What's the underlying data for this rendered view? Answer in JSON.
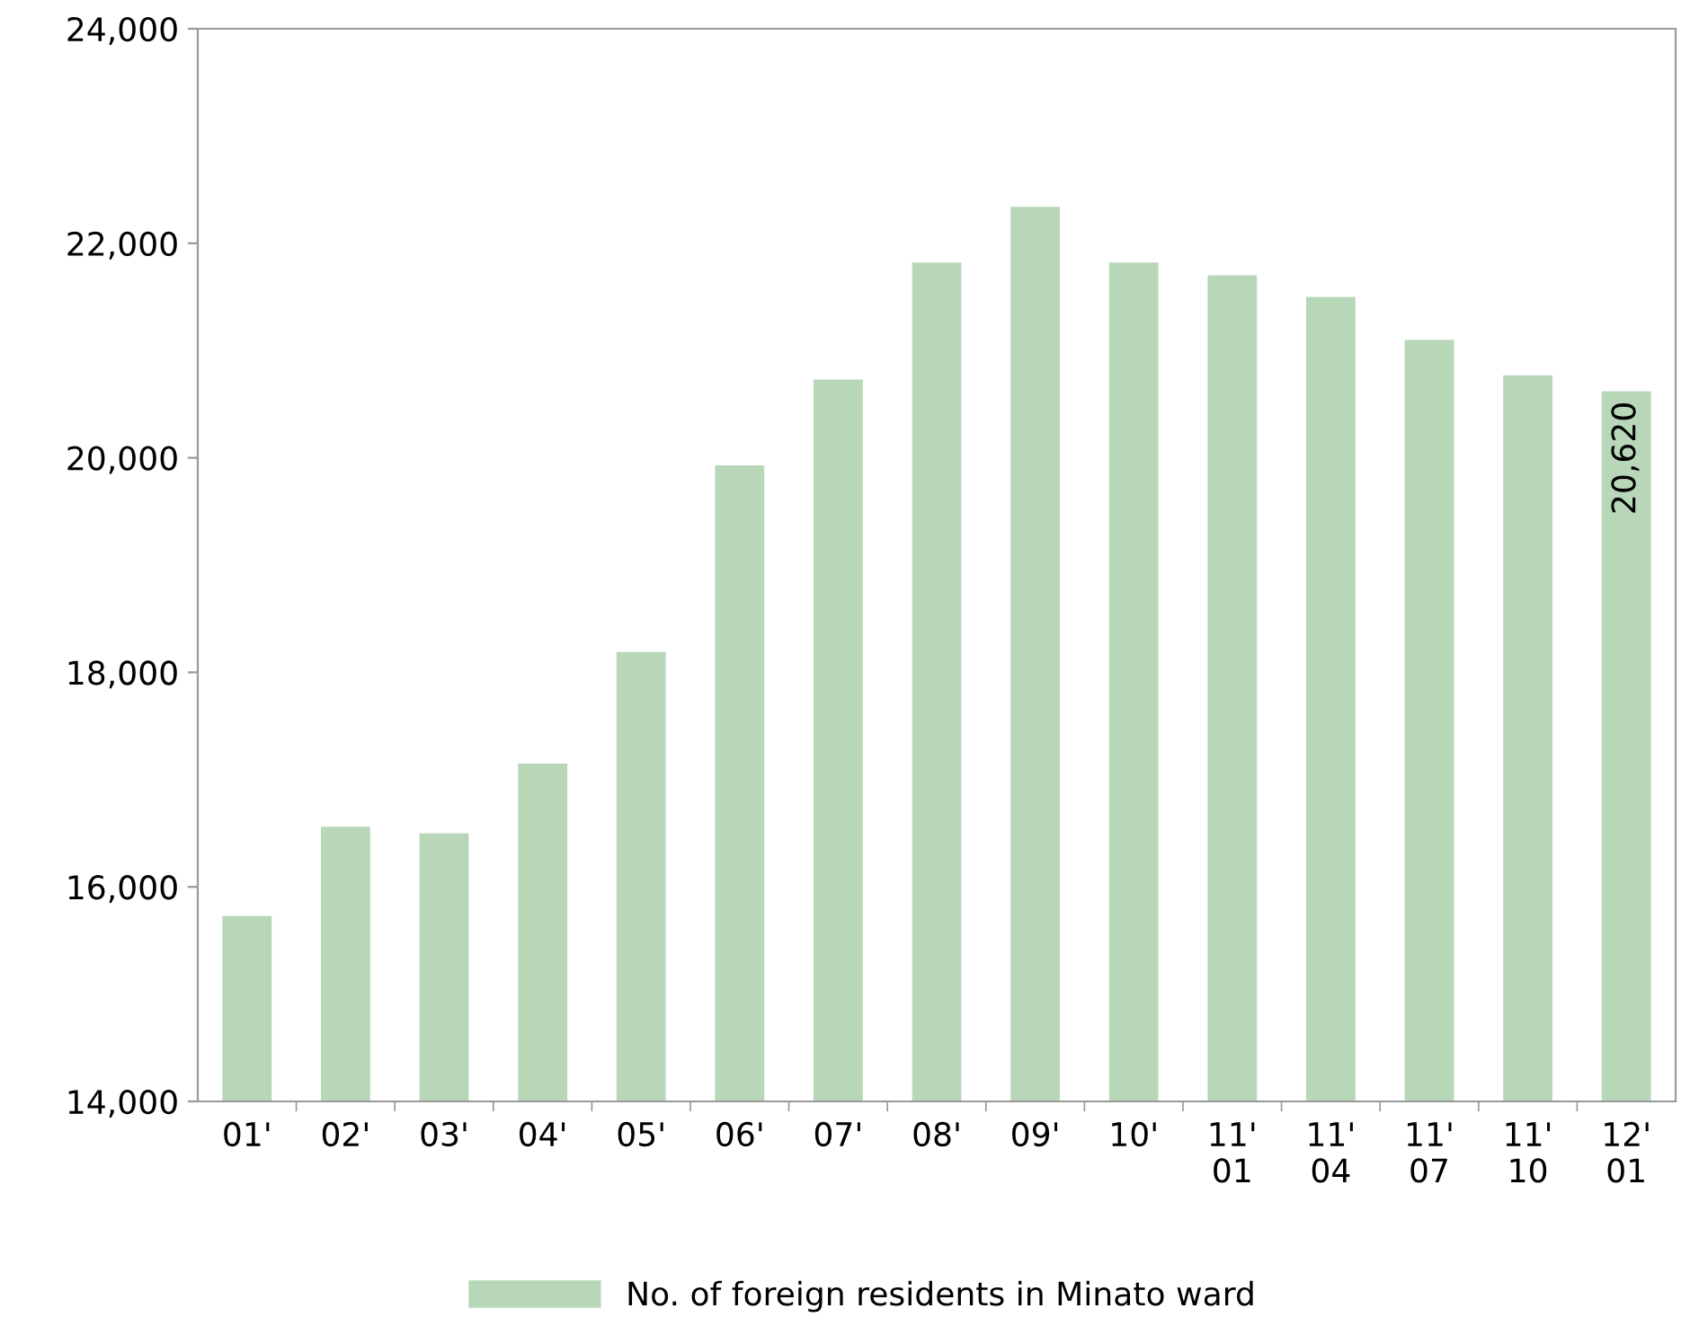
{
  "chart_data": {
    "type": "bar",
    "categories": [
      "01'",
      "02'",
      "03'",
      "04'",
      "05'",
      "06'",
      "07'",
      "08'",
      "09'",
      "10'",
      "11'\n01",
      "11'\n04",
      "11'\n07",
      "11'\n10",
      "12'\n01"
    ],
    "series": [
      {
        "name": "No. of foreign residents in Minato ward",
        "color": "#b8d7b9",
        "values": [
          15730,
          16560,
          16500,
          17150,
          18190,
          19930,
          20730,
          21820,
          22340,
          21820,
          21700,
          21500,
          21100,
          20770,
          20620
        ],
        "value_labels": [
          null,
          null,
          null,
          null,
          null,
          null,
          null,
          null,
          null,
          null,
          null,
          null,
          null,
          null,
          "20,620"
        ]
      }
    ],
    "ylim": [
      14000,
      24000
    ],
    "yticks": [
      {
        "value": 14000,
        "label": "14,000"
      },
      {
        "value": 16000,
        "label": "16,000"
      },
      {
        "value": 18000,
        "label": "18,000"
      },
      {
        "value": 20000,
        "label": "20,000"
      },
      {
        "value": 22000,
        "label": "22,000"
      },
      {
        "value": 24000,
        "label": "24,000"
      }
    ],
    "grid": false,
    "legend": "bottom"
  }
}
